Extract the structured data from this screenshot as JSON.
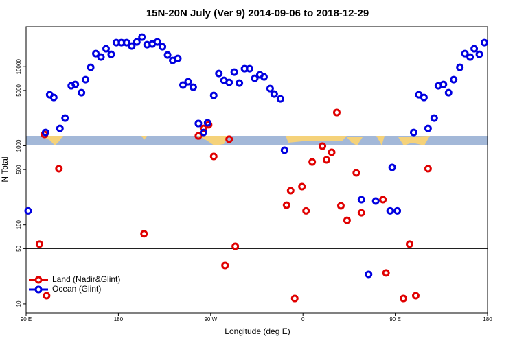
{
  "chart_data": {
    "type": "scatter",
    "title": "15N-20N July (Ver 9)   2014-09-06 to 2018-12-29",
    "x_label": "Longitude (deg E)",
    "y_label": "N Total",
    "log_y": true,
    "xlim": [
      90,
      540
    ],
    "ylim": [
      7.7,
      32000
    ],
    "xticks": [
      {
        "value": 90,
        "label": "90 E"
      },
      180,
      {
        "value": 270,
        "label": "90 W"
      },
      {
        "value": 360,
        "label": "0"
      },
      {
        "value": 450,
        "label": "90 E"
      },
      {
        "value": 540,
        "label": "180"
      }
    ],
    "yticks": [
      10,
      50,
      100,
      500,
      1000,
      5000,
      10000
    ],
    "hline": 50,
    "legend": "lower left",
    "series": [
      {
        "name": "Land (Nadir&Glint)",
        "color": "#e00000",
        "x": [
          103,
          110,
          122,
          108,
          205,
          258,
          263,
          268,
          273,
          284,
          288,
          294,
          344,
          348,
          352,
          359,
          363,
          369,
          379,
          383,
          388,
          393,
          397,
          403,
          412,
          417,
          438,
          441,
          458,
          464,
          470,
          482
        ],
        "values": [
          57,
          12.7,
          511,
          1390,
          77,
          1330,
          1660,
          1840,
          733,
          30.6,
          1210,
          53.5,
          177,
          270,
          11.7,
          304,
          150,
          624,
          988,
          663,
          826,
          2630,
          174,
          114,
          454,
          142,
          208,
          24.6,
          11.7,
          57,
          12.7,
          511
        ]
      },
      {
        "name": "Ocean (Glint)",
        "color": "#0000e0",
        "x": [
          92,
          109,
          113,
          117,
          123,
          128,
          134,
          138,
          144,
          148,
          153,
          158,
          163,
          168,
          173,
          178,
          183,
          188,
          193,
          198,
          203,
          208,
          213,
          218,
          223,
          228,
          233,
          238,
          243,
          248,
          253,
          258,
          263,
          267,
          273,
          278,
          283,
          288,
          293,
          298,
          303,
          308,
          313,
          318,
          322,
          328,
          332,
          338,
          342,
          417,
          424,
          431,
          445,
          447,
          452,
          468,
          473,
          478,
          482,
          488,
          492,
          497,
          502,
          507,
          513,
          518,
          523,
          527,
          532,
          537
        ],
        "values": [
          150,
          1470,
          4420,
          4080,
          1660,
          2240,
          5730,
          5960,
          4690,
          6860,
          9820,
          14650,
          13250,
          16830,
          14350,
          20140,
          20140,
          20140,
          18240,
          20560,
          23660,
          18970,
          19360,
          20560,
          17870,
          14070,
          11990,
          12740,
          5850,
          6460,
          5500,
          1910,
          1470,
          1950,
          4330,
          8200,
          6720,
          6330,
          8540,
          6200,
          9440,
          9440,
          7130,
          7890,
          7430,
          5290,
          4510,
          3920,
          877,
          208,
          23.6,
          200,
          150,
          532,
          150,
          1470,
          4420,
          4080,
          1660,
          2240,
          5730,
          5960,
          4690,
          6860,
          9820,
          14650,
          13250,
          16830,
          14350,
          20140
        ]
      }
    ]
  }
}
